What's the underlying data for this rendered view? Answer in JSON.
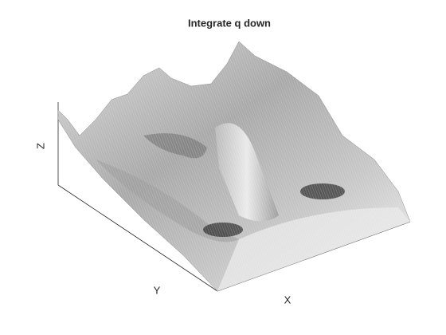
{
  "chart_data": {
    "type": "surface",
    "title": "Integrate q down",
    "xlabel": "X",
    "ylabel": "Y",
    "zlabel": "Z"
  }
}
